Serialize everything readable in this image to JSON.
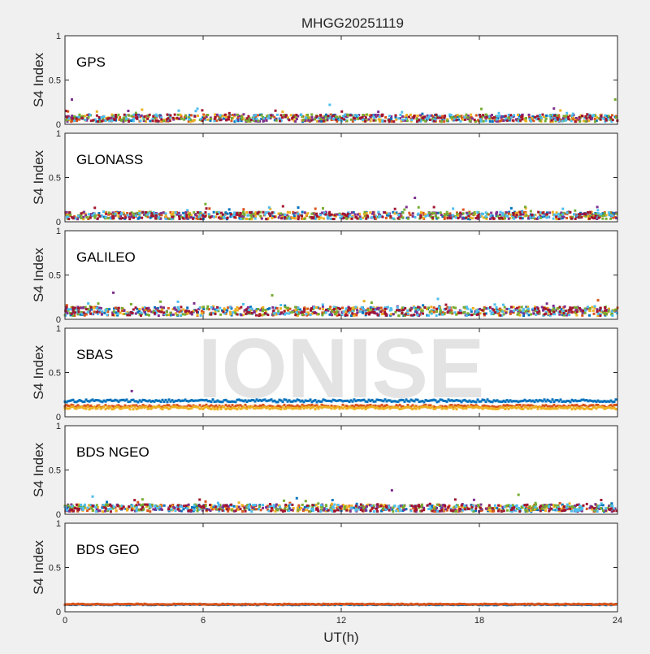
{
  "chart_data": {
    "type": "scatter",
    "title": "MHGG20251119",
    "xlabel": "UT(h)",
    "ylabel": "S4 Index",
    "xlim": [
      0,
      24
    ],
    "ylim": [
      0,
      1
    ],
    "x_ticks": [
      "0",
      "6",
      "12",
      "18",
      "24"
    ],
    "y_ticks": [
      "0",
      "0.5",
      "1"
    ],
    "watermark": "IONISE",
    "colors": [
      "#0072bd",
      "#d95319",
      "#edb120",
      "#7e2f8e",
      "#77ac30",
      "#4dbeee",
      "#a2142f"
    ],
    "panels": [
      {
        "name": "GPS",
        "series_count": 7,
        "baseline": 0.07,
        "spread": 0.04,
        "max_spikes": [
          [
            0.3,
            0.28
          ],
          [
            23.9,
            0.28
          ],
          [
            11.5,
            0.22
          ]
        ]
      },
      {
        "name": "GLONASS",
        "series_count": 7,
        "baseline": 0.07,
        "spread": 0.04,
        "max_spikes": [
          [
            15.2,
            0.27
          ],
          [
            6.1,
            0.2
          ]
        ]
      },
      {
        "name": "GALILEO",
        "series_count": 7,
        "baseline": 0.09,
        "spread": 0.05,
        "max_spikes": [
          [
            2.1,
            0.3
          ],
          [
            9.0,
            0.27
          ],
          [
            16.2,
            0.23
          ]
        ]
      },
      {
        "name": "SBAS",
        "series_count": 3,
        "baseline": 0.13,
        "spread": 0.03,
        "series_levels": [
          0.18,
          0.12,
          0.1
        ],
        "max_spikes": [
          [
            2.9,
            0.29
          ]
        ]
      },
      {
        "name": "BDS NGEO",
        "series_count": 7,
        "baseline": 0.07,
        "spread": 0.04,
        "max_spikes": [
          [
            14.2,
            0.27
          ],
          [
            19.7,
            0.22
          ],
          [
            1.2,
            0.2
          ]
        ]
      },
      {
        "name": "BDS GEO",
        "series_count": 2,
        "baseline": 0.08,
        "spread": 0.01,
        "series_levels": [
          0.08,
          0.085
        ],
        "max_spikes": []
      }
    ]
  }
}
